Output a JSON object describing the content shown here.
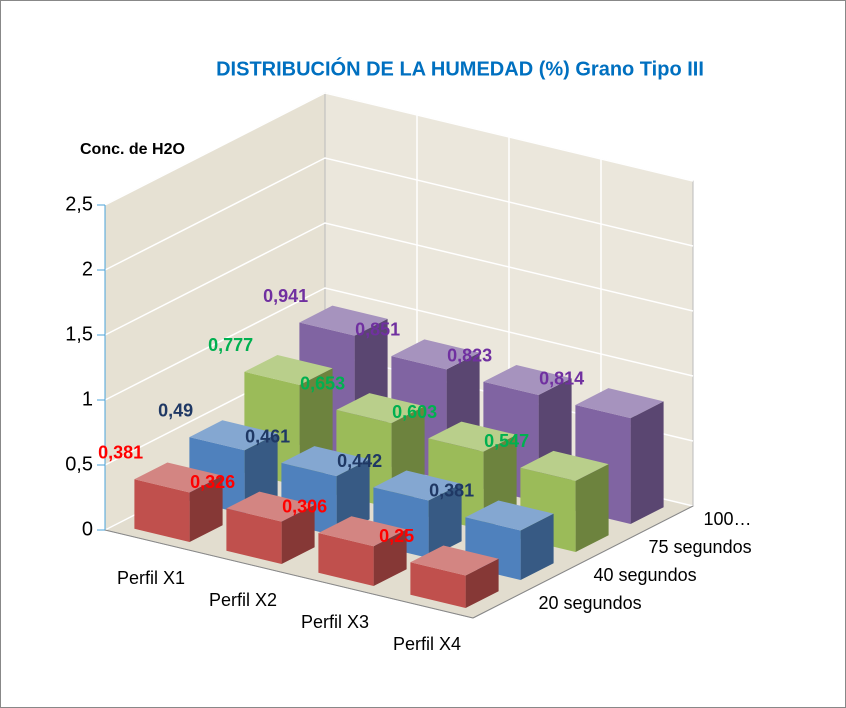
{
  "chart_data": {
    "type": "bar3d",
    "title": "DISTRIBUCIÓN DE LA HUMEDAD (%) Grano Tipo III",
    "y_label": "Conc. de H2O",
    "categories": [
      "Perfil X1",
      "Perfil X2",
      "Perfil X3",
      "Perfil X4"
    ],
    "series": [
      {
        "name": "20 segundos",
        "color": "#c0504d",
        "label_color": "#ff0000",
        "values": [
          0.381,
          0.326,
          0.306,
          0.25
        ],
        "value_labels": [
          "0,381",
          "0,326",
          "0,306",
          "0,25"
        ]
      },
      {
        "name": "40 segundos",
        "color": "#4f81bd",
        "label_color": "#1f3864",
        "values": [
          0.49,
          0.461,
          0.442,
          0.381
        ],
        "value_labels": [
          "0,49",
          "0,461",
          "0,442",
          "0,381"
        ]
      },
      {
        "name": "75 segundos",
        "color": "#9bbb59",
        "label_color": "#00b050",
        "values": [
          0.777,
          0.653,
          0.603,
          0.547
        ],
        "value_labels": [
          "0,777",
          "0,653",
          "0,603",
          "0,547"
        ]
      },
      {
        "name": "100…",
        "color": "#8064a2",
        "label_color": "#7030a0",
        "values": [
          0.941,
          0.851,
          0.823,
          0.814
        ],
        "value_labels": [
          "0,941",
          "0,851",
          "0,823",
          "0,814"
        ]
      }
    ],
    "ylim": [
      0,
      2.5
    ],
    "yticks": [
      0,
      {
        "value": 0.5,
        "label": "0,5"
      },
      1,
      {
        "value": 1.5,
        "label": "1,5"
      },
      2,
      {
        "value": 2.5,
        "label": "2,5"
      }
    ],
    "grid": true
  }
}
